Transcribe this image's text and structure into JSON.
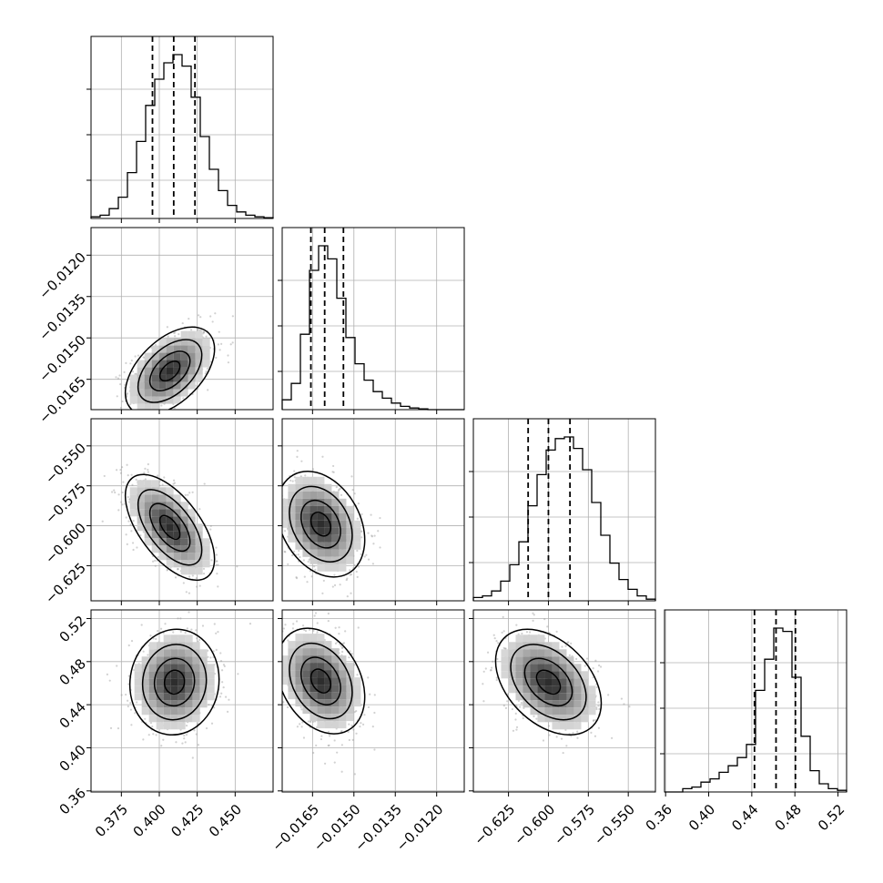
{
  "chart_data": {
    "type": "corner",
    "n_params": 4,
    "grid": true,
    "params": [
      {
        "range": [
          0.355,
          0.475
        ],
        "ticks": [
          0.375,
          0.4,
          0.425,
          0.45
        ],
        "tick_labels": [
          "0.375",
          "0.400",
          "0.425",
          "0.450"
        ],
        "quantiles": [
          0.3955,
          0.4095,
          0.4235
        ],
        "hist": [
          0.01,
          0.02,
          0.06,
          0.13,
          0.28,
          0.47,
          0.69,
          0.85,
          0.95,
          1.0,
          0.93,
          0.74,
          0.5,
          0.3,
          0.17,
          0.08,
          0.04,
          0.02,
          0.01,
          0.005
        ]
      },
      {
        "range": [
          -0.0176,
          -0.011
        ],
        "ticks": [
          -0.0165,
          -0.015,
          -0.0135,
          -0.012
        ],
        "tick_labels": [
          "−0.0165",
          "−0.0150",
          "−0.0135",
          "−0.0120"
        ],
        "quantiles": [
          -0.01656,
          -0.01606,
          -0.01538
        ],
        "hist": [
          0.06,
          0.16,
          0.46,
          0.85,
          1.0,
          0.92,
          0.68,
          0.44,
          0.28,
          0.18,
          0.11,
          0.07,
          0.04,
          0.02,
          0.01,
          0.005,
          0.0,
          0.0,
          0.0,
          0.0
        ]
      },
      {
        "range": [
          -0.647,
          -0.533
        ],
        "ticks": [
          -0.625,
          -0.6,
          -0.575,
          -0.55
        ],
        "tick_labels": [
          "−0.625",
          "−0.600",
          "−0.575",
          "−0.550"
        ],
        "quantiles": [
          -0.6127,
          -0.6,
          -0.5865
        ],
        "hist": [
          0.02,
          0.03,
          0.06,
          0.12,
          0.22,
          0.36,
          0.58,
          0.77,
          0.92,
          0.99,
          1.0,
          0.93,
          0.8,
          0.6,
          0.4,
          0.23,
          0.13,
          0.07,
          0.03,
          0.01
        ]
      },
      {
        "range": [
          0.359,
          0.528
        ],
        "ticks": [
          0.36,
          0.4,
          0.44,
          0.48,
          0.52
        ],
        "tick_labels": [
          "0.36",
          "0.40",
          "0.44",
          "0.48",
          "0.52"
        ],
        "quantiles": [
          0.4425,
          0.4625,
          0.4805
        ],
        "hist": [
          0.0,
          0.0,
          0.02,
          0.03,
          0.06,
          0.08,
          0.12,
          0.16,
          0.21,
          0.29,
          0.62,
          0.81,
          1.0,
          0.98,
          0.7,
          0.34,
          0.13,
          0.05,
          0.02,
          0.01
        ]
      }
    ],
    "pairs": [
      {
        "row": 1,
        "col": 0,
        "center": [
          0.407,
          -0.0162
        ],
        "sigma": [
          0.012,
          0.00065
        ],
        "rho": 0.5
      },
      {
        "row": 2,
        "col": 0,
        "center": [
          0.407,
          -0.601
        ],
        "sigma": [
          0.012,
          0.0135
        ],
        "rho": -0.6
      },
      {
        "row": 2,
        "col": 1,
        "center": [
          -0.0162,
          -0.599
        ],
        "sigma": [
          0.00065,
          0.0135
        ],
        "rho": -0.3
      },
      {
        "row": 3,
        "col": 0,
        "center": [
          0.41,
          0.461
        ],
        "sigma": [
          0.012,
          0.02
        ],
        "rho": 0.05
      },
      {
        "row": 3,
        "col": 1,
        "center": [
          -0.0162,
          0.462
        ],
        "sigma": [
          0.00065,
          0.02
        ],
        "rho": -0.3
      },
      {
        "row": 3,
        "col": 2,
        "center": [
          -0.6,
          0.461
        ],
        "sigma": [
          0.0135,
          0.02
        ],
        "rho": -0.4
      }
    ]
  }
}
